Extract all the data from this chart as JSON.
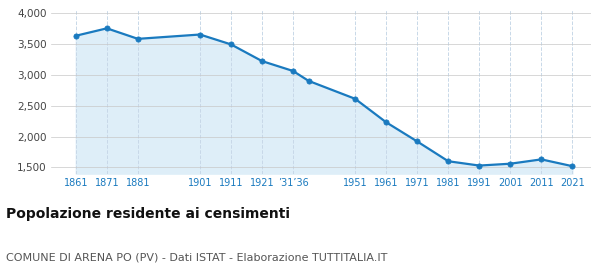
{
  "years": [
    1861,
    1871,
    1881,
    1901,
    1911,
    1921,
    1931,
    1936,
    1951,
    1961,
    1971,
    1981,
    1991,
    2001,
    2011,
    2021
  ],
  "population": [
    3630,
    3750,
    3580,
    3650,
    3490,
    3220,
    3060,
    2900,
    2610,
    2230,
    1920,
    1600,
    1530,
    1560,
    1630,
    1520
  ],
  "line_color": "#1a7abf",
  "fill_color": "#deeef8",
  "marker_color": "#1a7abf",
  "grid_color_h": "#c8c8c8",
  "grid_color_v": "#c8d8e8",
  "bg_color": "#ffffff",
  "ylim": [
    1400,
    4050
  ],
  "yticks": [
    1500,
    2000,
    2500,
    3000,
    3500,
    4000
  ],
  "ytick_labels": [
    "1,500",
    "2,000",
    "2,500",
    "3,000",
    "3,500",
    "4,000"
  ],
  "x_tick_positions": [
    1861,
    1871,
    1881,
    1901,
    1911,
    1921,
    1931,
    1951,
    1961,
    1971,
    1981,
    1991,
    2001,
    2011,
    2021
  ],
  "x_tick_labels": [
    "1861",
    "1871",
    "1881",
    "1901",
    "1911",
    "1921",
    "’31’36",
    "1951",
    "1961",
    "1971",
    "1981",
    "1991",
    "2001",
    "2011",
    "2021"
  ],
  "xlim": [
    1853,
    2027
  ],
  "title": "Popolazione residente ai censimenti",
  "subtitle": "COMUNE DI ARENA PO (PV) - Dati ISTAT - Elaborazione TUTTITALIA.IT",
  "title_fontsize": 10,
  "subtitle_fontsize": 8
}
